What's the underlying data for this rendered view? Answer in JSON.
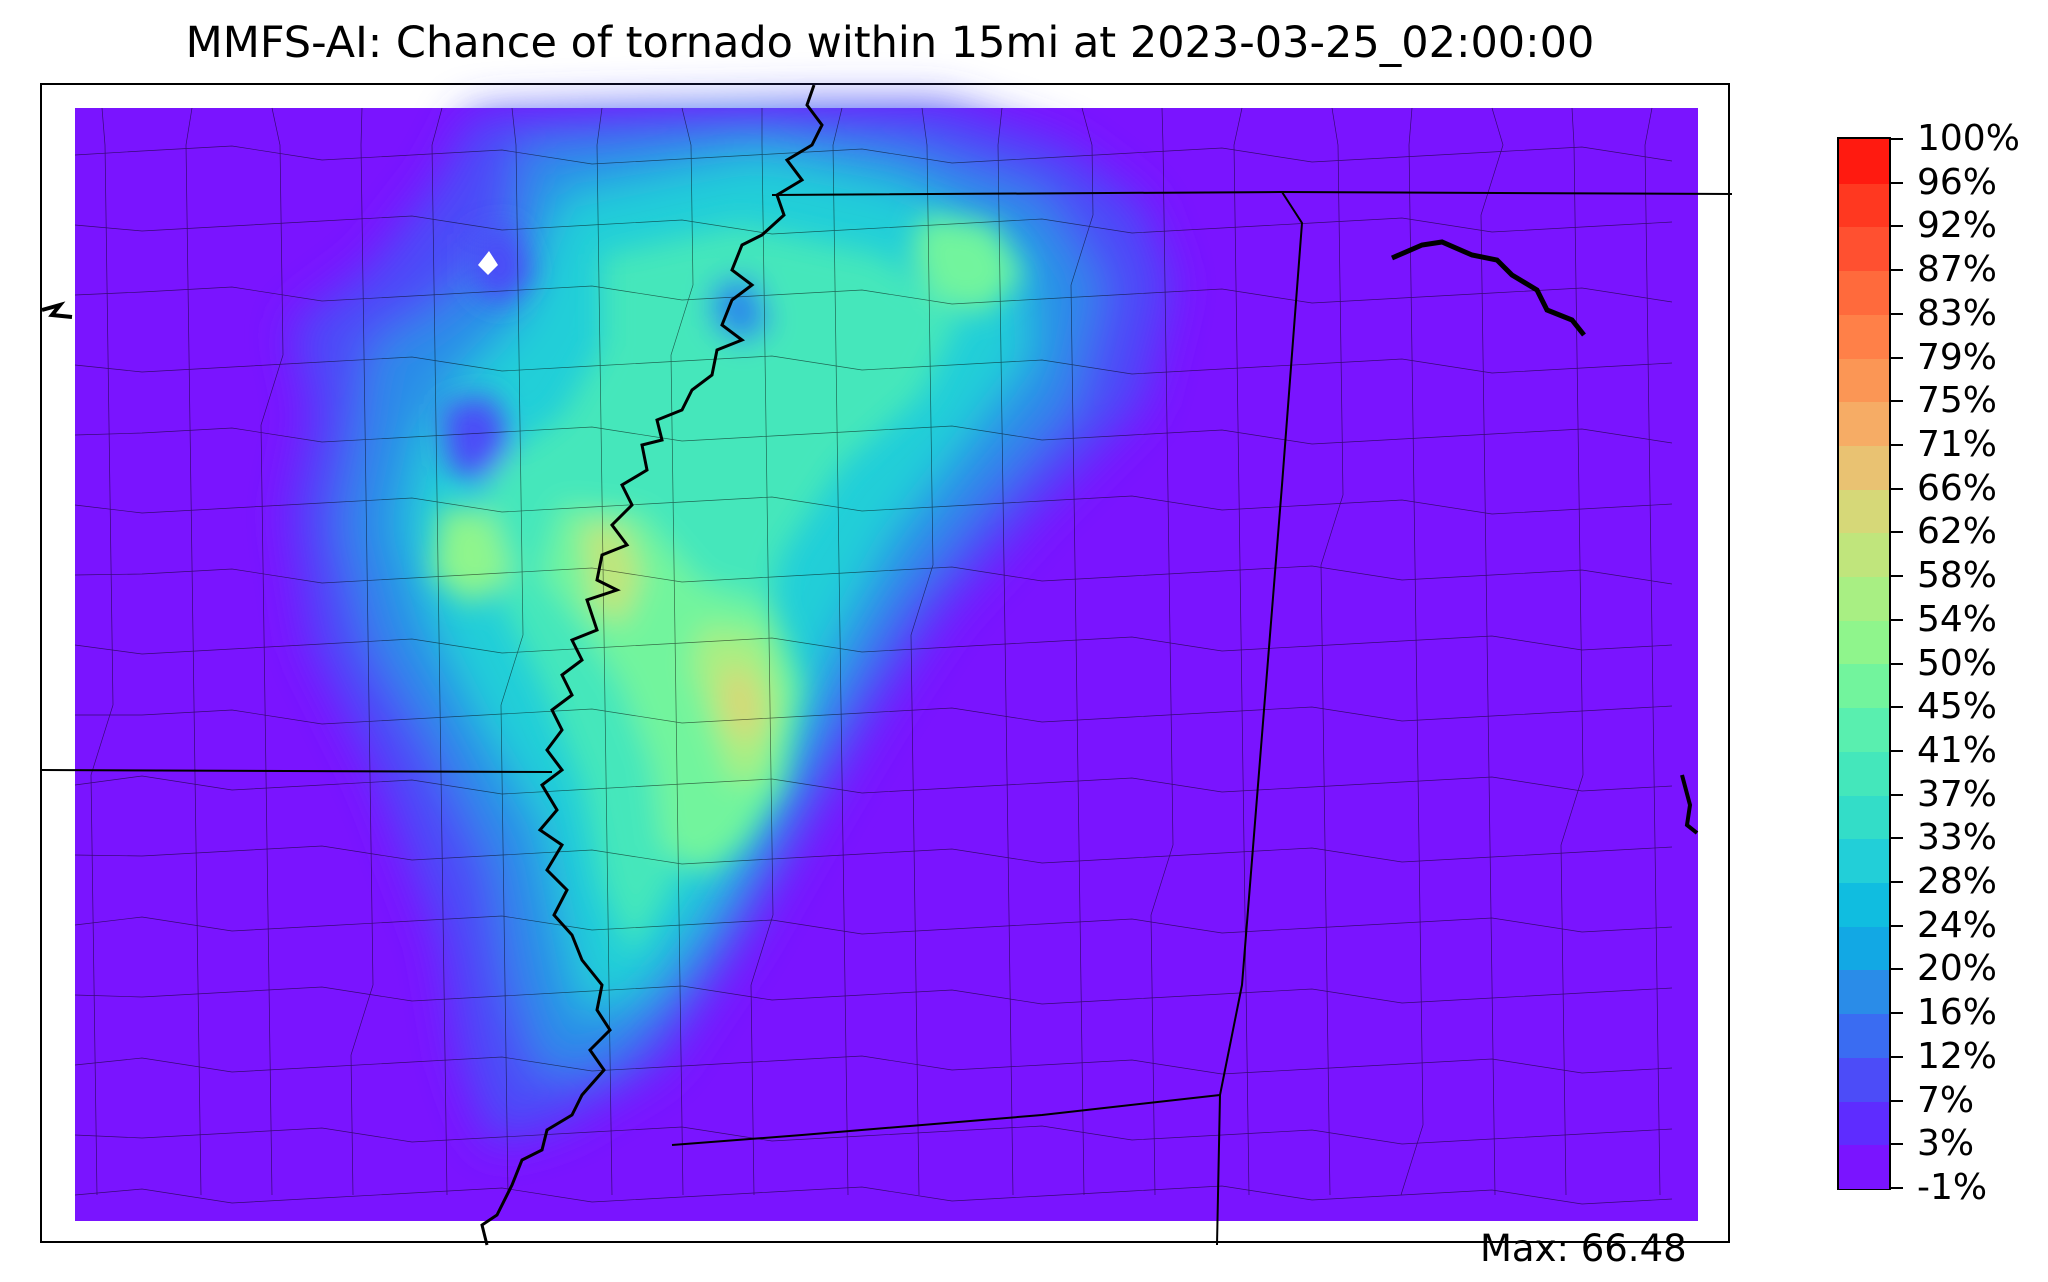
{
  "title": "MMFS-AI: Chance of tornado within 15mi at 2023-03-25_02:00:00",
  "max_label": "Max: 66.48",
  "colorbar": {
    "ticks": [
      "-1%",
      "3%",
      "7%",
      "12%",
      "16%",
      "20%",
      "24%",
      "28%",
      "33%",
      "37%",
      "41%",
      "45%",
      "50%",
      "54%",
      "58%",
      "62%",
      "66%",
      "71%",
      "75%",
      "79%",
      "83%",
      "87%",
      "92%",
      "96%",
      "100%"
    ],
    "colors": [
      "#7a14ff",
      "#5e2cff",
      "#4c4cf8",
      "#3a6cf2",
      "#2a8ce8",
      "#12a8e4",
      "#10bde0",
      "#22cfd8",
      "#33ddc8",
      "#44e7bb",
      "#59efaf",
      "#72f49d",
      "#8ff58c",
      "#a8ef83",
      "#c0e57c",
      "#d6d878",
      "#e9c272",
      "#f6ac65",
      "#fb9655",
      "#ff8048",
      "#ff6a3c",
      "#ff5030",
      "#ff3820",
      "#ff1a10"
    ]
  },
  "chart_data": {
    "type": "heatmap",
    "title": "MMFS-AI: Chance of tornado within 15mi at 2023-03-25_02:00:00",
    "colorbar_levels": [
      -1,
      3,
      7,
      12,
      16,
      20,
      24,
      28,
      33,
      37,
      41,
      45,
      50,
      54,
      58,
      62,
      66,
      71,
      75,
      79,
      83,
      87,
      92,
      96,
      100
    ],
    "max_value": 66.48,
    "background_level": "-1% to 3%",
    "notes": "Band of elevated probability runs along the Mississippi River from north to south; highest values (~62-66%) near the river center."
  }
}
